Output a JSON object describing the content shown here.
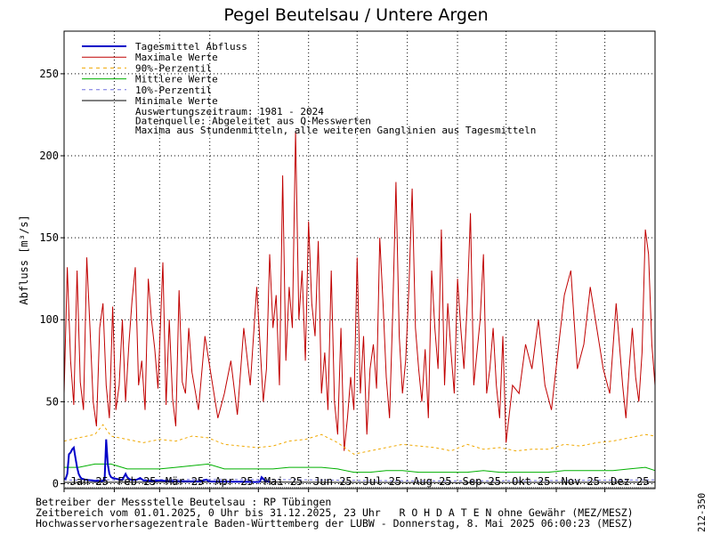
{
  "page": {
    "title": "Pegel Beutelsau / Untere Argen",
    "side_code": "212-350"
  },
  "legend": {
    "items": [
      {
        "label": "Tagesmittel Abfluss",
        "color": "#0000c8",
        "style": "solid-thick"
      },
      {
        "label": "Maximale Werte",
        "color": "#c00000",
        "style": "solid"
      },
      {
        "label": "90%-Perzentil",
        "color": "#f0a800",
        "style": "dashed"
      },
      {
        "label": "Mittlere Werte",
        "color": "#00b000",
        "style": "solid"
      },
      {
        "label": "10%-Perzentil",
        "color": "#7070e0",
        "style": "dashed"
      },
      {
        "label": "Minimale Werte",
        "color": "#000000",
        "style": "solid"
      }
    ],
    "notes": [
      "Auswertungszeitraum: 1981 - 2024",
      "Datenquelle: Abgeleitet aus Q-Messwerten",
      "Maxima aus Stundenmitteln, alle weiteren Ganglinien aus Tagesmitteln"
    ]
  },
  "footer": {
    "line1": "Betreiber der Messstelle Beutelsau : RP Tübingen",
    "line2": "Zeitbereich vom 01.01.2025, 0 Uhr bis 31.12.2025, 23 Uhr   R O H D A T E N ohne Gewähr (MEZ/MESZ)",
    "line3": "Hochwasservorhersagezentrale Baden-Württemberg der LUBW - Donnerstag, 8. Mai 2025 06:00:23 (MESZ)"
  },
  "chart_data": {
    "type": "line",
    "title": "Pegel Beutelsau / Untere Argen",
    "ylabel": "Abfluss [m³/s]",
    "xlabel": "",
    "ylim": [
      -3,
      276
    ],
    "xlim": [
      1,
      366
    ],
    "yticks": [
      0,
      50,
      100,
      150,
      200,
      250
    ],
    "x_unit": "day of year 2025",
    "month_labels": [
      "Jan 25",
      "Feb 25",
      "Mär 25",
      "Apr 25",
      "Mai 25",
      "Jun 25",
      "Jul 25",
      "Aug 25",
      "Sep 25",
      "Okt 25",
      "Nov 25",
      "Dez 25"
    ],
    "month_start_days": [
      1,
      32,
      60,
      91,
      121,
      152,
      182,
      213,
      244,
      274,
      305,
      335
    ],
    "grid": true,
    "legend_position": "top-left",
    "series": [
      {
        "name": "Maximale Werte",
        "color": "#c00000",
        "x": [
          1,
          3,
          5,
          7,
          9,
          11,
          13,
          15,
          17,
          19,
          21,
          23,
          25,
          27,
          29,
          31,
          33,
          35,
          37,
          39,
          41,
          43,
          45,
          47,
          49,
          51,
          53,
          55,
          57,
          59,
          62,
          64,
          66,
          68,
          70,
          72,
          74,
          76,
          78,
          80,
          84,
          88,
          92,
          96,
          100,
          104,
          108,
          112,
          116,
          120,
          124,
          126,
          128,
          130,
          132,
          134,
          136,
          138,
          140,
          142,
          144,
          146,
          148,
          150,
          152,
          154,
          156,
          158,
          160,
          162,
          164,
          166,
          168,
          170,
          172,
          174,
          176,
          178,
          180,
          182,
          184,
          186,
          188,
          190,
          192,
          194,
          196,
          198,
          200,
          202,
          204,
          206,
          208,
          210,
          212,
          214,
          216,
          218,
          220,
          222,
          224,
          226,
          228,
          230,
          232,
          234,
          236,
          238,
          240,
          242,
          244,
          246,
          248,
          250,
          252,
          254,
          256,
          258,
          260,
          262,
          264,
          266,
          268,
          270,
          272,
          274,
          278,
          282,
          286,
          290,
          294,
          298,
          302,
          306,
          310,
          314,
          318,
          322,
          326,
          330,
          334,
          338,
          342,
          346,
          348,
          350,
          352,
          354,
          356,
          358,
          360,
          362,
          364,
          366
        ],
        "values": [
          55,
          132,
          75,
          48,
          130,
          62,
          45,
          138,
          95,
          50,
          35,
          95,
          110,
          60,
          40,
          108,
          45,
          60,
          100,
          50,
          85,
          112,
          132,
          60,
          75,
          45,
          125,
          100,
          82,
          58,
          135,
          48,
          100,
          52,
          35,
          118,
          62,
          55,
          95,
          68,
          45,
          90,
          65,
          40,
          55,
          75,
          42,
          95,
          60,
          120,
          50,
          70,
          140,
          95,
          115,
          60,
          188,
          75,
          120,
          95,
          215,
          100,
          130,
          75,
          160,
          110,
          90,
          148,
          55,
          80,
          45,
          130,
          50,
          30,
          95,
          20,
          40,
          65,
          45,
          138,
          55,
          90,
          30,
          70,
          85,
          58,
          150,
          110,
          65,
          40,
          105,
          184,
          90,
          55,
          75,
          120,
          180,
          95,
          70,
          50,
          82,
          40,
          130,
          95,
          70,
          155,
          60,
          110,
          80,
          55,
          125,
          95,
          70,
          110,
          165,
          60,
          80,
          100,
          140,
          55,
          70,
          95,
          60,
          40,
          90,
          25,
          60,
          55,
          85,
          70,
          100,
          60,
          45,
          80,
          115,
          130,
          70,
          85,
          120,
          95,
          70,
          55,
          110,
          60,
          40,
          70,
          95,
          65,
          50,
          80,
          155,
          140,
          85,
          60
        ]
      },
      {
        "name": "90%-Perzentil",
        "color": "#f0a800",
        "x": [
          1,
          10,
          20,
          25,
          30,
          40,
          50,
          60,
          70,
          80,
          90,
          100,
          110,
          120,
          130,
          140,
          150,
          160,
          170,
          180,
          190,
          200,
          210,
          220,
          230,
          240,
          250,
          260,
          270,
          280,
          290,
          300,
          310,
          320,
          330,
          340,
          350,
          360,
          366
        ],
        "values": [
          26,
          28,
          30,
          36,
          29,
          27,
          25,
          27,
          26,
          29,
          28,
          24,
          23,
          22,
          23,
          26,
          27,
          30,
          25,
          18,
          20,
          22,
          24,
          23,
          22,
          20,
          24,
          21,
          22,
          20,
          21,
          21,
          24,
          23,
          25,
          26,
          28,
          30,
          29
        ]
      },
      {
        "name": "Mittlere Werte",
        "color": "#00b000",
        "x": [
          1,
          10,
          20,
          30,
          40,
          50,
          60,
          70,
          80,
          90,
          100,
          110,
          120,
          130,
          140,
          150,
          160,
          170,
          180,
          190,
          200,
          210,
          220,
          230,
          240,
          250,
          260,
          270,
          280,
          290,
          300,
          310,
          320,
          330,
          340,
          350,
          360,
          366
        ],
        "values": [
          10,
          10,
          12,
          12,
          9,
          9,
          9,
          10,
          11,
          12,
          9,
          9,
          9,
          9,
          10,
          10,
          10,
          9,
          7,
          7,
          8,
          8,
          7,
          7,
          7,
          7,
          8,
          7,
          7,
          7,
          7,
          8,
          8,
          8,
          8,
          9,
          10,
          8
        ]
      },
      {
        "name": "10%-Perzentil",
        "color": "#7070e0",
        "x": [
          1,
          30,
          60,
          90,
          120,
          150,
          180,
          210,
          240,
          270,
          300,
          330,
          366
        ],
        "values": [
          2.2,
          2.4,
          2.5,
          2.6,
          2.5,
          2.4,
          2.0,
          1.8,
          1.7,
          1.8,
          1.9,
          2.1,
          2.3
        ]
      },
      {
        "name": "Minimale Werte",
        "color": "#000000",
        "x": [
          1,
          60,
          120,
          180,
          240,
          300,
          366
        ],
        "values": [
          0.8,
          0.9,
          1.0,
          0.8,
          0.7,
          0.8,
          0.9
        ]
      },
      {
        "name": "Tagesmittel Abfluss",
        "color": "#0000c8",
        "x": [
          1,
          2,
          3,
          4,
          5,
          6,
          7,
          8,
          9,
          10,
          11,
          12,
          14,
          16,
          18,
          20,
          22,
          24,
          26,
          27,
          28,
          29,
          30,
          31,
          33,
          35,
          37,
          39,
          40,
          41,
          42,
          44,
          46,
          48,
          50,
          54,
          58,
          60,
          65,
          70,
          75,
          80,
          85,
          89,
          90,
          91,
          95,
          100,
          105,
          110,
          115,
          119,
          120,
          121,
          122,
          123,
          124,
          125,
          126,
          127,
          128
        ],
        "values": [
          3,
          3,
          6,
          18,
          19,
          21,
          22,
          16,
          10,
          6,
          4,
          3,
          2.5,
          2.2,
          2,
          1.8,
          1.7,
          1.6,
          2,
          27,
          12,
          6,
          4,
          3.5,
          3,
          2.6,
          2.4,
          6,
          4,
          3,
          2.5,
          2.2,
          2.5,
          3.5,
          2,
          1.8,
          1.7,
          2,
          1.6,
          1.5,
          1.5,
          1.4,
          1.4,
          2.5,
          1.6,
          1.4,
          1.3,
          1.3,
          1.2,
          1.2,
          1.1,
          1.0,
          1.1,
          1.0,
          1.3,
          4,
          3,
          1.8,
          1.5,
          1.3,
          1.2
        ]
      }
    ]
  }
}
